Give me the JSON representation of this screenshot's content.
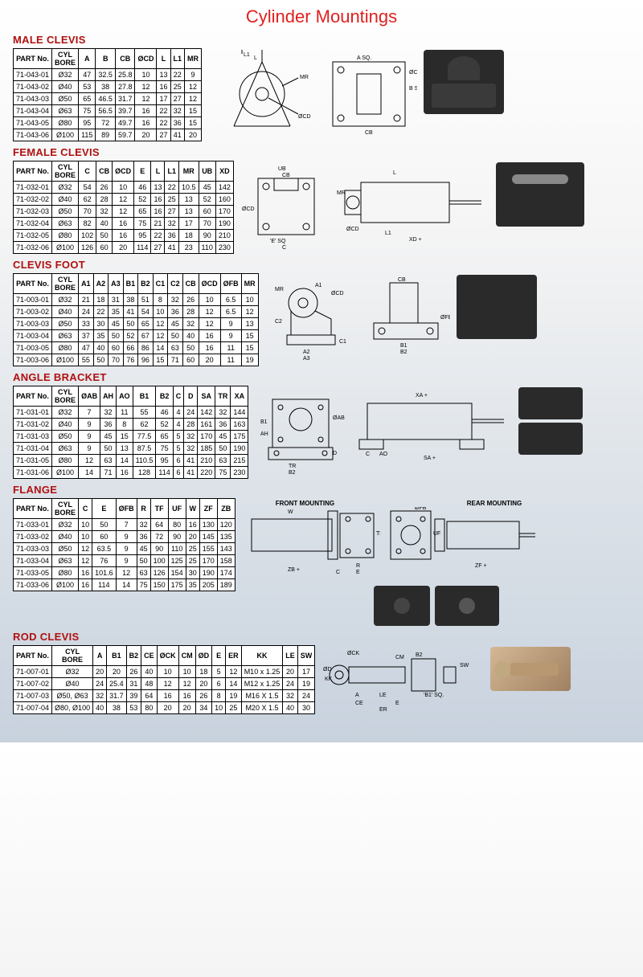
{
  "page": {
    "title": "Cylinder Mountings",
    "title_color": "#e02020",
    "section_color": "#b01010",
    "bg_gradient": [
      "#ffffff",
      "#e0e5ea",
      "#c8d2de"
    ]
  },
  "sections": {
    "male_clevis": {
      "title": "MALE CLEVIS",
      "columns": [
        "PART No.",
        "CYL BORE",
        "A",
        "B",
        "CB",
        "ØCD",
        "L",
        "L1",
        "MR"
      ],
      "rows": [
        [
          "71-043-01",
          "Ø32",
          "47",
          "32.5",
          "25.8",
          "10",
          "13",
          "22",
          "9"
        ],
        [
          "71-043-02",
          "Ø40",
          "53",
          "38",
          "27.8",
          "12",
          "16",
          "25",
          "12"
        ],
        [
          "71-043-03",
          "Ø50",
          "65",
          "46.5",
          "31.7",
          "12",
          "17",
          "27",
          "12"
        ],
        [
          "71-043-04",
          "Ø63",
          "75",
          "56.5",
          "39.7",
          "16",
          "22",
          "32",
          "15"
        ],
        [
          "71-043-05",
          "Ø80",
          "95",
          "72",
          "49.7",
          "16",
          "22",
          "36",
          "15"
        ],
        [
          "71-043-06",
          "Ø100",
          "115",
          "89",
          "59.7",
          "20",
          "27",
          "41",
          "20"
        ]
      ]
    },
    "female_clevis": {
      "title": "FEMALE CLEVIS",
      "columns": [
        "PART No.",
        "CYL BORE",
        "C",
        "CB",
        "ØCD",
        "E",
        "L",
        "L1",
        "MR",
        "UB",
        "XD"
      ],
      "rows": [
        [
          "71-032-01",
          "Ø32",
          "54",
          "26",
          "10",
          "46",
          "13",
          "22",
          "10.5",
          "45",
          "142"
        ],
        [
          "71-032-02",
          "Ø40",
          "62",
          "28",
          "12",
          "52",
          "16",
          "25",
          "13",
          "52",
          "160"
        ],
        [
          "71-032-03",
          "Ø50",
          "70",
          "32",
          "12",
          "65",
          "16",
          "27",
          "13",
          "60",
          "170"
        ],
        [
          "71-032-04",
          "Ø63",
          "82",
          "40",
          "16",
          "75",
          "21",
          "32",
          "17",
          "70",
          "190"
        ],
        [
          "71-032-05",
          "Ø80",
          "102",
          "50",
          "16",
          "95",
          "22",
          "36",
          "18",
          "90",
          "210"
        ],
        [
          "71-032-06",
          "Ø100",
          "126",
          "60",
          "20",
          "114",
          "27",
          "41",
          "23",
          "110",
          "230"
        ]
      ]
    },
    "clevis_foot": {
      "title": "CLEVIS FOOT",
      "columns": [
        "PART No.",
        "CYL BORE",
        "A1",
        "A2",
        "A3",
        "B1",
        "B2",
        "C1",
        "C2",
        "CB",
        "ØCD",
        "ØFB",
        "MR"
      ],
      "rows": [
        [
          "71-003-01",
          "Ø32",
          "21",
          "18",
          "31",
          "38",
          "51",
          "8",
          "32",
          "26",
          "10",
          "6.5",
          "10"
        ],
        [
          "71-003-02",
          "Ø40",
          "24",
          "22",
          "35",
          "41",
          "54",
          "10",
          "36",
          "28",
          "12",
          "6.5",
          "12"
        ],
        [
          "71-003-03",
          "Ø50",
          "33",
          "30",
          "45",
          "50",
          "65",
          "12",
          "45",
          "32",
          "12",
          "9",
          "13"
        ],
        [
          "71-003-04",
          "Ø63",
          "37",
          "35",
          "50",
          "52",
          "67",
          "12",
          "50",
          "40",
          "16",
          "9",
          "15"
        ],
        [
          "71-003-05",
          "Ø80",
          "47",
          "40",
          "60",
          "66",
          "86",
          "14",
          "63",
          "50",
          "16",
          "11",
          "15"
        ],
        [
          "71-003-06",
          "Ø100",
          "55",
          "50",
          "70",
          "76",
          "96",
          "15",
          "71",
          "60",
          "20",
          "11",
          "19"
        ]
      ]
    },
    "angle_bracket": {
      "title": "ANGLE BRACKET",
      "columns": [
        "PART No.",
        "CYL BORE",
        "ØAB",
        "AH",
        "AO",
        "B1",
        "B2",
        "C",
        "D",
        "SA",
        "TR",
        "XA"
      ],
      "rows": [
        [
          "71-031-01",
          "Ø32",
          "7",
          "32",
          "11",
          "55",
          "46",
          "4",
          "24",
          "142",
          "32",
          "144"
        ],
        [
          "71-031-02",
          "Ø40",
          "9",
          "36",
          "8",
          "62",
          "52",
          "4",
          "28",
          "161",
          "36",
          "163"
        ],
        [
          "71-031-03",
          "Ø50",
          "9",
          "45",
          "15",
          "77.5",
          "65",
          "5",
          "32",
          "170",
          "45",
          "175"
        ],
        [
          "71-031-04",
          "Ø63",
          "9",
          "50",
          "13",
          "87.5",
          "75",
          "5",
          "32",
          "185",
          "50",
          "190"
        ],
        [
          "71-031-05",
          "Ø80",
          "12",
          "63",
          "14",
          "110.5",
          "95",
          "6",
          "41",
          "210",
          "63",
          "215"
        ],
        [
          "71-031-06",
          "Ø100",
          "14",
          "71",
          "16",
          "128",
          "114",
          "6",
          "41",
          "220",
          "75",
          "230"
        ]
      ]
    },
    "flange": {
      "title": "FLANGE",
      "columns": [
        "PART No.",
        "CYL BORE",
        "C",
        "E",
        "ØFB",
        "R",
        "TF",
        "UF",
        "W",
        "ZF",
        "ZB"
      ],
      "rows": [
        [
          "71-033-01",
          "Ø32",
          "10",
          "50",
          "7",
          "32",
          "64",
          "80",
          "16",
          "130",
          "120"
        ],
        [
          "71-033-02",
          "Ø40",
          "10",
          "60",
          "9",
          "36",
          "72",
          "90",
          "20",
          "145",
          "135"
        ],
        [
          "71-033-03",
          "Ø50",
          "12",
          "63.5",
          "9",
          "45",
          "90",
          "110",
          "25",
          "155",
          "143"
        ],
        [
          "71-033-04",
          "Ø63",
          "12",
          "76",
          "9",
          "50",
          "100",
          "125",
          "25",
          "170",
          "158"
        ],
        [
          "71-033-05",
          "Ø80",
          "16",
          "101.6",
          "12",
          "63",
          "126",
          "154",
          "30",
          "190",
          "174"
        ],
        [
          "71-033-06",
          "Ø100",
          "16",
          "114",
          "14",
          "75",
          "150",
          "175",
          "35",
          "205",
          "189"
        ]
      ],
      "labels": {
        "front": "FRONT MOUNTING",
        "rear": "REAR MOUNTING"
      }
    },
    "rod_clevis": {
      "title": "ROD CLEVIS",
      "columns": [
        "PART No.",
        "CYL BORE",
        "A",
        "B1",
        "B2",
        "CE",
        "ØCK",
        "CM",
        "ØD",
        "E",
        "ER",
        "KK",
        "LE",
        "SW"
      ],
      "rows": [
        [
          "71-007-01",
          "Ø32",
          "20",
          "20",
          "26",
          "40",
          "10",
          "10",
          "18",
          "5",
          "12",
          "M10 x 1.25",
          "20",
          "17"
        ],
        [
          "71-007-02",
          "Ø40",
          "24",
          "25.4",
          "31",
          "48",
          "12",
          "12",
          "20",
          "6",
          "14",
          "M12 x 1.25",
          "24",
          "19"
        ],
        [
          "71-007-03",
          "Ø50, Ø63",
          "32",
          "31.7",
          "39",
          "64",
          "16",
          "16",
          "26",
          "8",
          "19",
          "M16 X 1.5",
          "32",
          "24"
        ],
        [
          "71-007-04",
          "Ø80, Ø100",
          "40",
          "38",
          "53",
          "80",
          "20",
          "20",
          "34",
          "10",
          "25",
          "M20 X 1.5",
          "40",
          "30"
        ]
      ]
    }
  }
}
